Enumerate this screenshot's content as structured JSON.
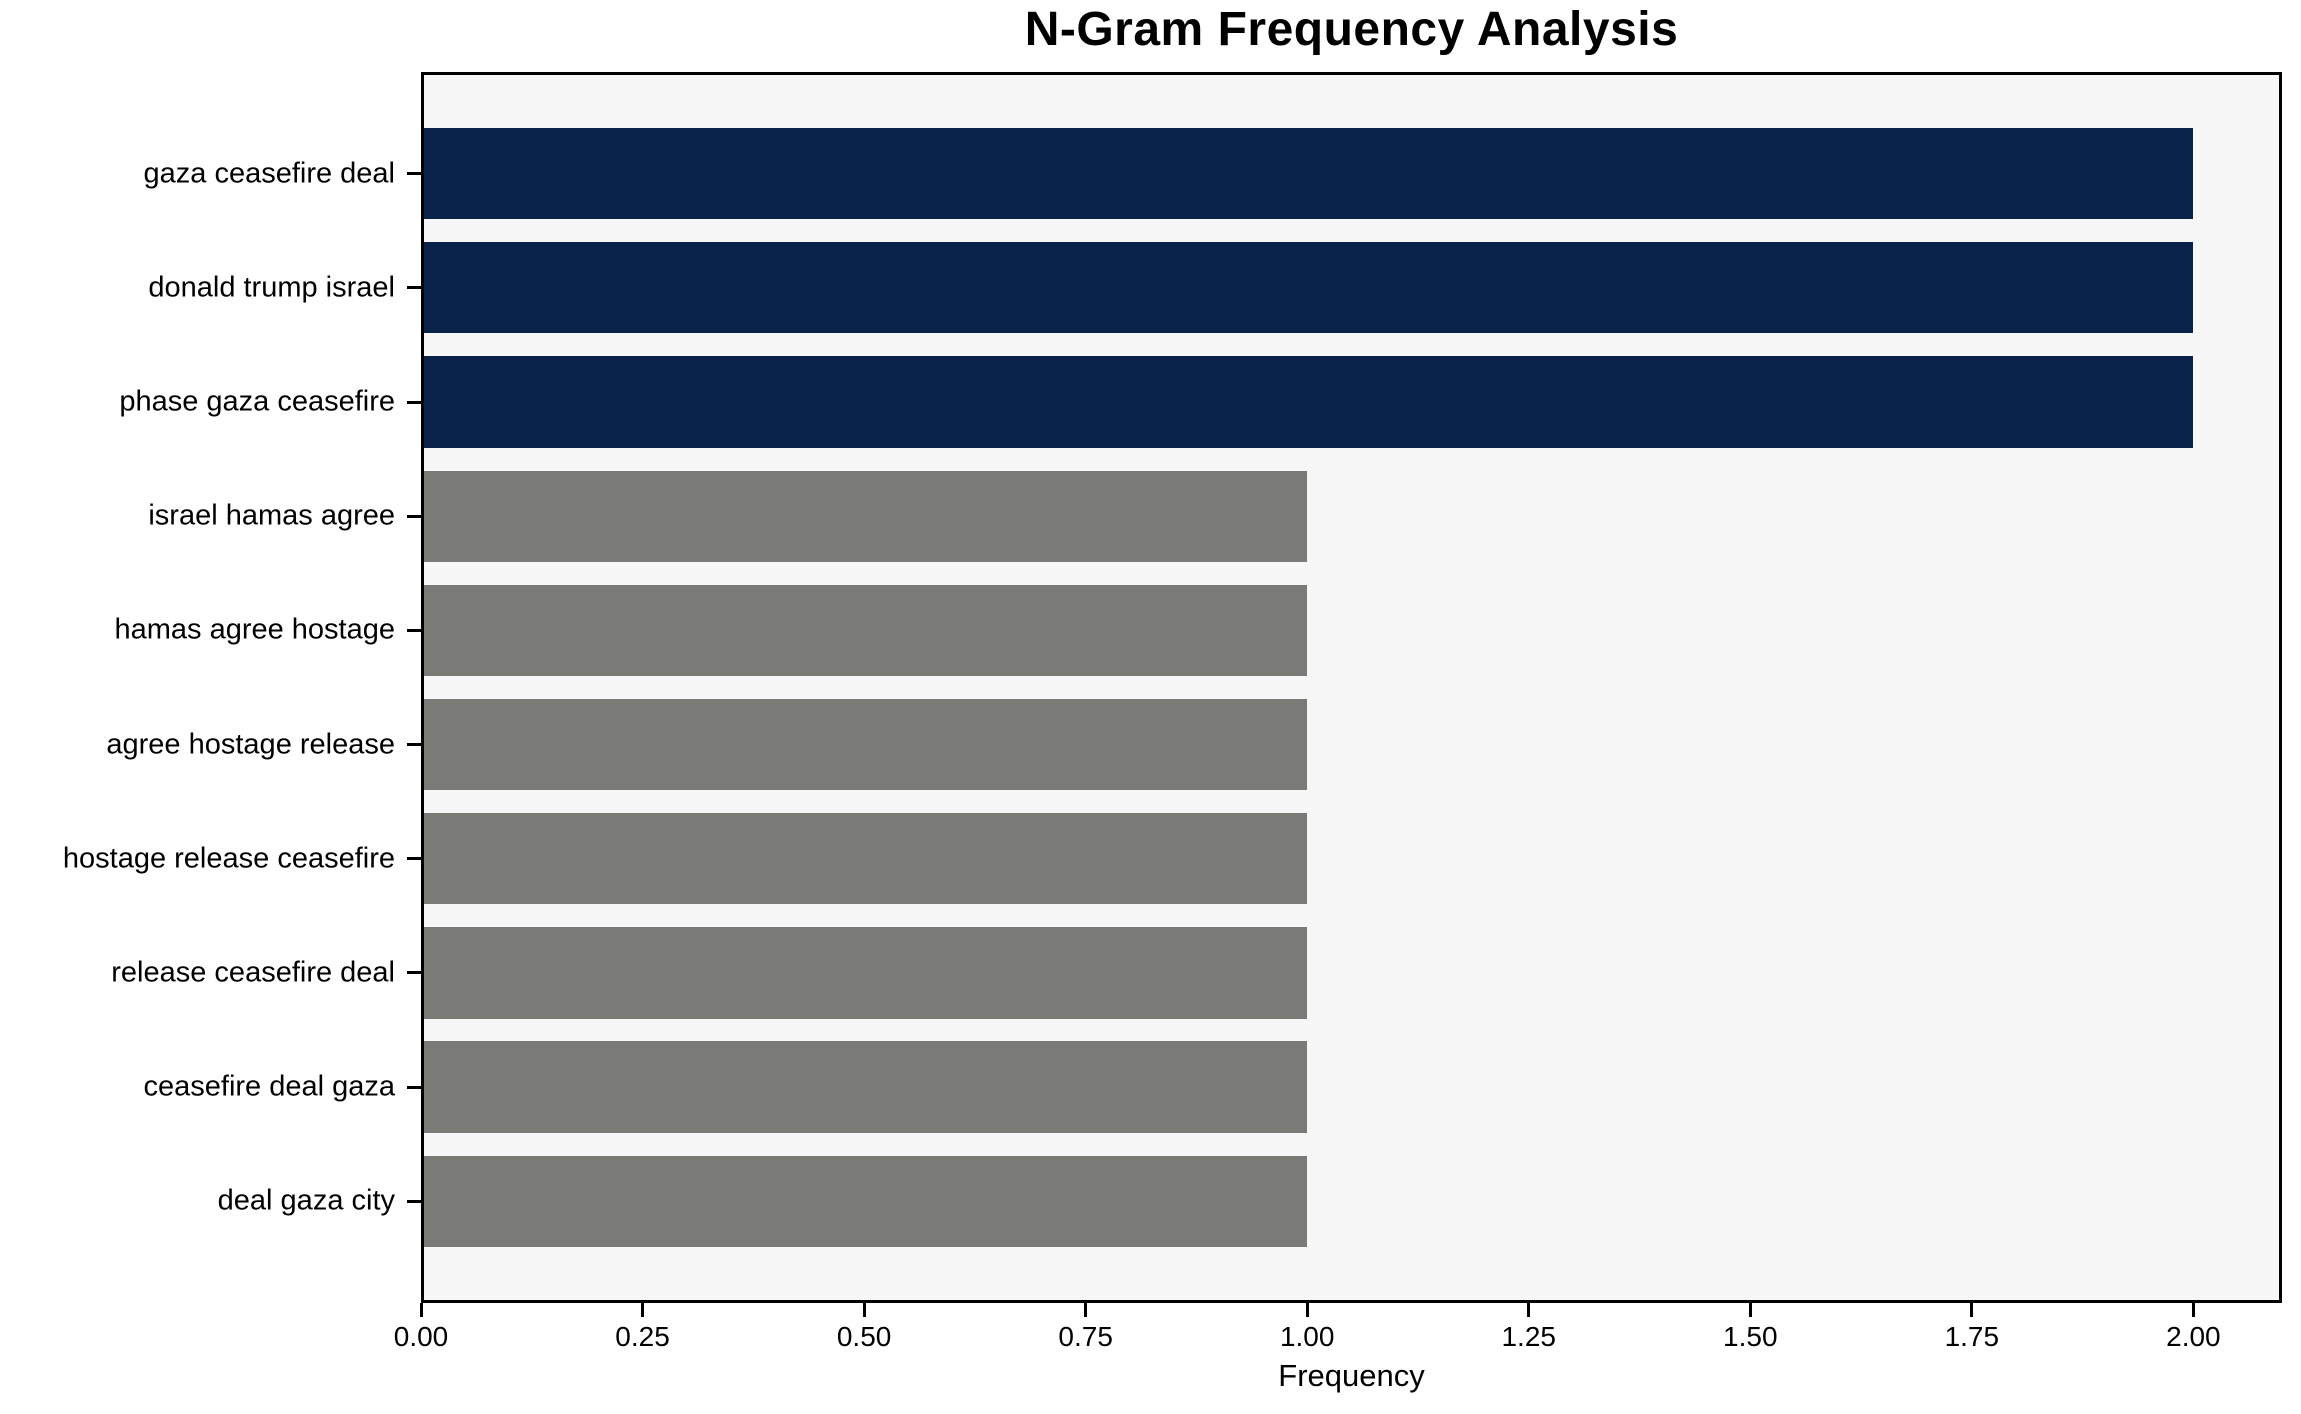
{
  "chart_data": {
    "type": "bar",
    "orientation": "horizontal",
    "title": "N-Gram Frequency Analysis",
    "xlabel": "Frequency",
    "ylabel": "",
    "categories": [
      "gaza ceasefire deal",
      "donald trump israel",
      "phase gaza ceasefire",
      "israel hamas agree",
      "hamas agree hostage",
      "agree hostage release",
      "hostage release ceasefire",
      "release ceasefire deal",
      "ceasefire deal gaza",
      "deal gaza city"
    ],
    "values": [
      2,
      2,
      2,
      1,
      1,
      1,
      1,
      1,
      1,
      1
    ],
    "bar_colors": [
      "#08224a",
      "#08224a",
      "#08224a",
      "#7a7a76",
      "#7a7a76",
      "#7a7a76",
      "#7a7a76",
      "#7a7a76",
      "#7a7a76",
      "#7a7a76"
    ],
    "x_tick_values": [
      0,
      0.25,
      0.5,
      0.75,
      1.0,
      1.25,
      1.5,
      1.75,
      2.0
    ],
    "x_tick_labels": [
      "0.00",
      "0.25",
      "0.50",
      "0.75",
      "1.00",
      "1.25",
      "1.50",
      "1.75",
      "2.00"
    ],
    "xlim": [
      0,
      2.1
    ],
    "bar_height_fraction": 0.8,
    "grid": false,
    "legend": null,
    "colors": {
      "highlight": "#08224a",
      "muted": "#7a7a76",
      "plot_background": "#f7f7f7",
      "figure_background": "#ffffff",
      "spine": "#000000",
      "text": "#000000"
    }
  }
}
